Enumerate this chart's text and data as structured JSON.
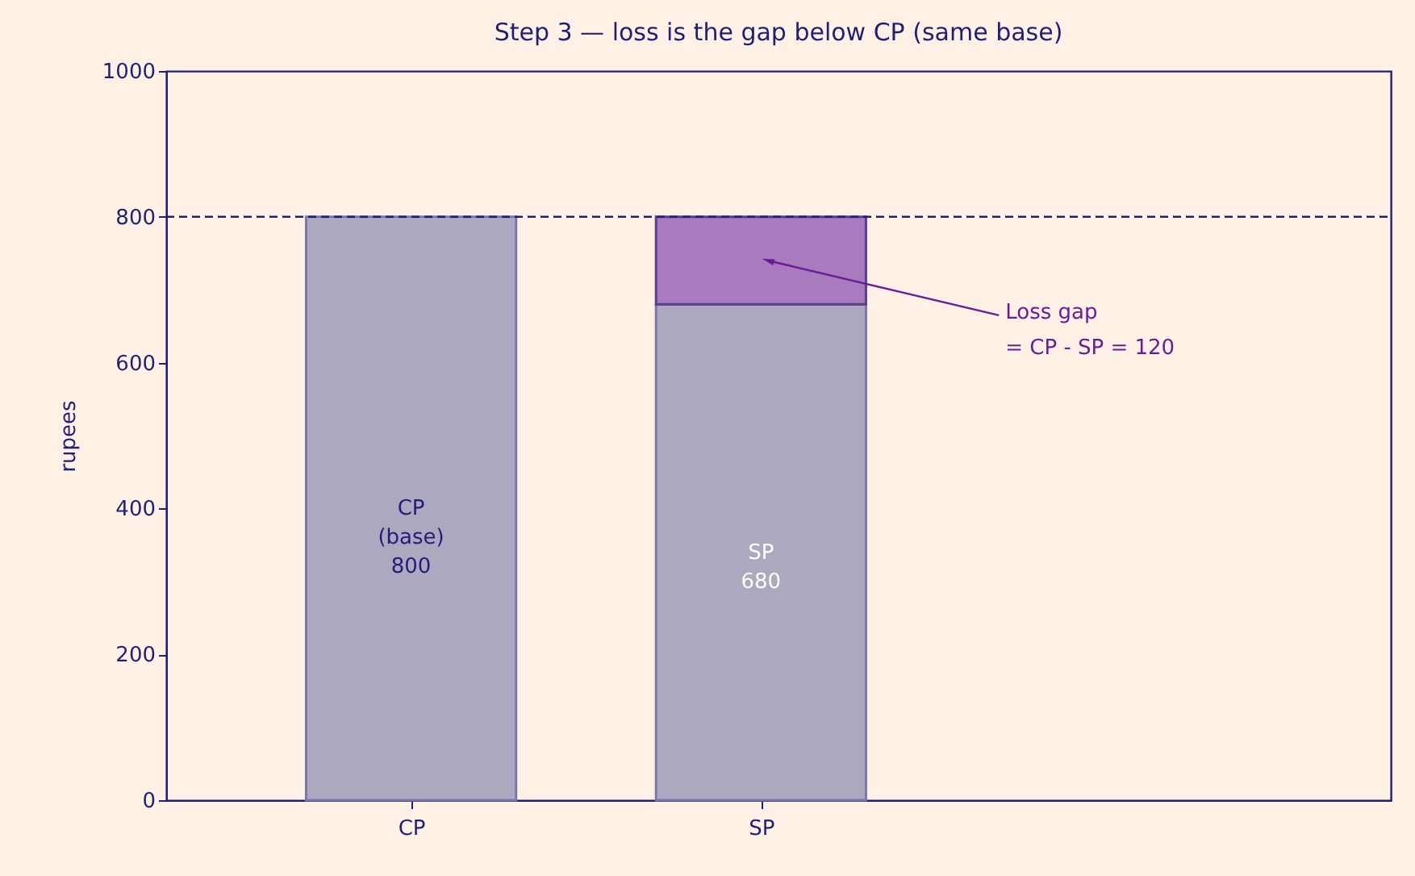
{
  "chart_data": {
    "type": "bar",
    "title": "Step 3 — loss is the gap below CP (same base)",
    "ylabel": "rupees",
    "categories": [
      "CP",
      "SP"
    ],
    "stacked": true,
    "series": [
      {
        "color": "#ada8c0",
        "values": [
          800,
          680
        ],
        "value_labels": [
          "CP\n(base)\n800",
          "SP\n680"
        ]
      },
      {
        "color": "#a87bbf",
        "values": [
          null,
          120
        ]
      }
    ],
    "ylim": [
      0,
      1000
    ],
    "yticks": [
      0,
      200,
      400,
      600,
      800,
      1000
    ],
    "grid": false,
    "ref_lines": [
      {
        "axis": "y",
        "value": 800,
        "color": "#1f1f75",
        "line_style": "dashed"
      }
    ],
    "annotations": [
      "Loss gap\n= CP - SP = 120"
    ]
  }
}
